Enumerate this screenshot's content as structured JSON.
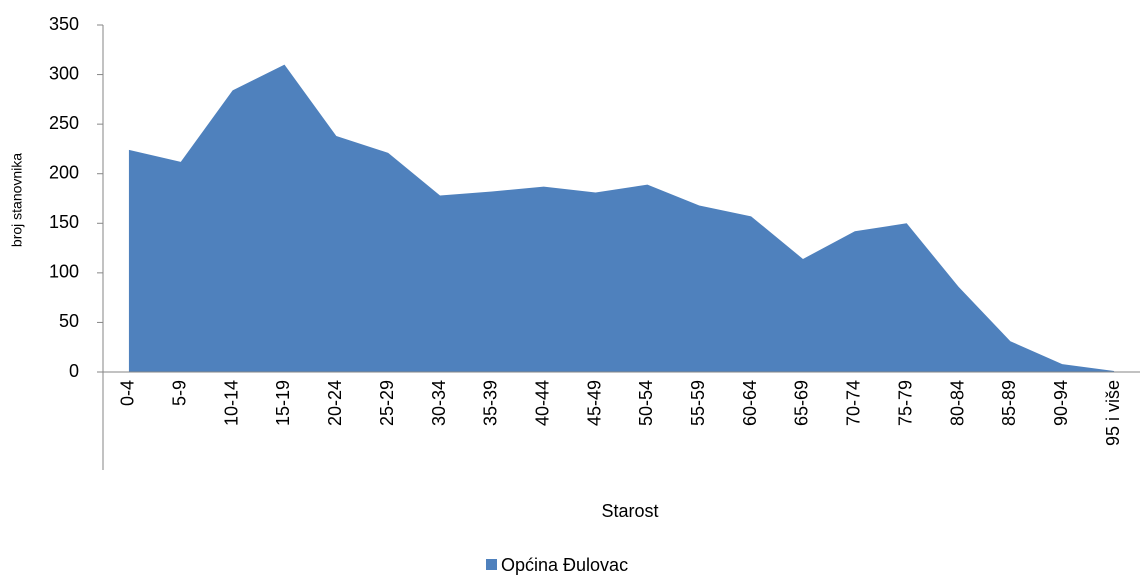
{
  "chart_data": {
    "type": "area",
    "y_label": "broj stanovnika",
    "x_label": "Starost",
    "categories": [
      "0-4",
      "5-9",
      "10-14",
      "15-19",
      "20-24",
      "25-29",
      "30-34",
      "35-39",
      "40-44",
      "45-49",
      "50-54",
      "55-59",
      "60-64",
      "65-69",
      "70-74",
      "75-79",
      "80-84",
      "85-89",
      "90-94",
      "95 i više"
    ],
    "series": [
      {
        "name": "Općina Đulovac",
        "color": "#4f81bd",
        "values": [
          224,
          212,
          284,
          310,
          238,
          221,
          178,
          182,
          187,
          181,
          189,
          168,
          157,
          114,
          142,
          150,
          86,
          31,
          8,
          1
        ]
      }
    ],
    "ylim": [
      0,
      350
    ],
    "yticks": [
      0,
      50,
      100,
      150,
      200,
      250,
      300,
      350
    ],
    "legend": "bottom"
  }
}
